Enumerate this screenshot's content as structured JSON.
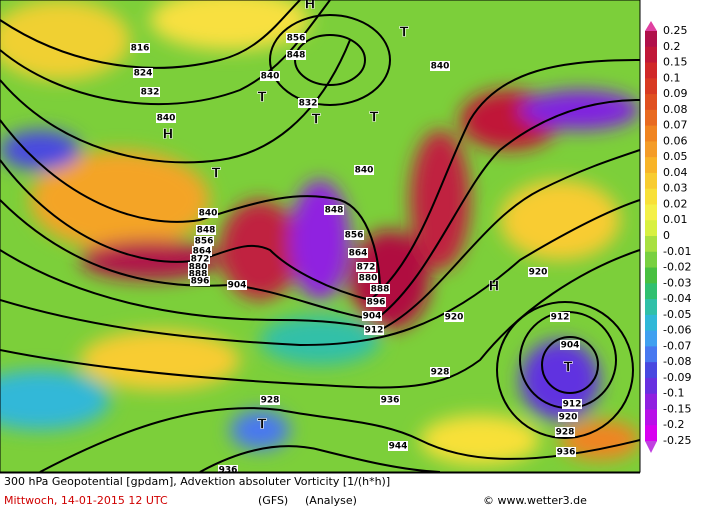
{
  "map": {
    "contour_labels": [
      "816",
      "824",
      "832",
      "840",
      "856",
      "848",
      "840",
      "832",
      "840",
      "848",
      "840",
      "848",
      "856",
      "864",
      "872",
      "880",
      "888",
      "896",
      "904",
      "856",
      "864",
      "872",
      "880",
      "888",
      "896",
      "904",
      "912",
      "920",
      "928",
      "936",
      "944",
      "936",
      "928",
      "920",
      "912",
      "904",
      "912",
      "920",
      "928",
      "936",
      "840"
    ],
    "pressure_centers": [
      "H",
      "H",
      "H",
      "T",
      "T",
      "T",
      "T",
      "T",
      "T",
      "T"
    ],
    "legend": {
      "labels": [
        0.25,
        0.2,
        0.15,
        0.1,
        0.09,
        0.08,
        0.07,
        0.06,
        0.05,
        0.04,
        0.03,
        0.02,
        0.01,
        0,
        -0.01,
        -0.02,
        -0.03,
        -0.04,
        -0.05,
        -0.06,
        -0.07,
        -0.08,
        -0.09,
        -0.1,
        -0.15,
        -0.2,
        -0.25
      ],
      "colors": [
        "#b0104a",
        "#c01838",
        "#d02828",
        "#d83a22",
        "#e05020",
        "#e86a20",
        "#f08420",
        "#f49c28",
        "#f8b428",
        "#f8cc30",
        "#f8e038",
        "#f4f048",
        "#d8f040",
        "#a8e040",
        "#78d040",
        "#48c040",
        "#30c070",
        "#30c0a8",
        "#30b8d8",
        "#40a0f0",
        "#4878f0",
        "#4848e0",
        "#6830e0",
        "#9020e0",
        "#b810e8",
        "#d800f0"
      ],
      "top_color": "#e040a0",
      "bottom_color": "#c040e0"
    },
    "footer": {
      "title": "300 hPa Geopotential [gpdam], Advektion absoluter Vorticity [1/(h*h)]",
      "date": "Mittwoch, 14-01-2015  12 UTC",
      "model": "(GFS)",
      "run": "(Analyse)",
      "credit": "© www.wetter3.de"
    }
  }
}
